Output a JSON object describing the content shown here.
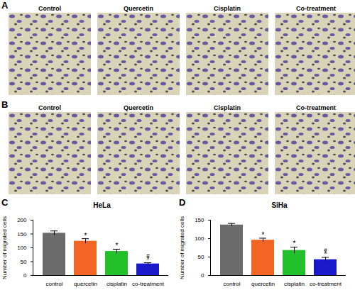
{
  "image_panels": [
    {
      "panel_label": "A",
      "labels": [
        "Control",
        "Quercetin",
        "Cisplatin",
        "Co-treatment"
      ]
    },
    {
      "panel_label": "B",
      "labels": [
        "Control",
        "Quercetin",
        "Cisplatin",
        "Co-treatment"
      ]
    }
  ],
  "chart_data": [
    {
      "type": "bar",
      "panel_label": "C",
      "title": "HeLa",
      "y_label": "Number of migrated cells",
      "categories": [
        "control",
        "quercetin",
        "cisplatin",
        "co-treatment"
      ],
      "values": [
        153,
        124,
        87,
        42
      ],
      "errors": [
        8,
        9,
        8,
        4
      ],
      "colors": [
        "#6b6b6b",
        "#f26522",
        "#22c02a",
        "#1a1acc"
      ],
      "ylim": [
        0,
        200
      ],
      "yticks": [
        0,
        50,
        100,
        150,
        200
      ],
      "annotations": [
        {
          "category": "quercetin",
          "text": "*"
        },
        {
          "category": "cisplatin",
          "text": "*"
        },
        {
          "category": "co-treatment",
          "text": "*"
        },
        {
          "category": "co-treatment",
          "text": "#"
        }
      ]
    },
    {
      "type": "bar",
      "panel_label": "D",
      "title": "SiHa",
      "y_label": "Number of migrated cells",
      "categories": [
        "control",
        "quercetin",
        "cisplatin",
        "co-treatment"
      ],
      "values": [
        137,
        96,
        68,
        43
      ],
      "errors": [
        4,
        5,
        9,
        6
      ],
      "colors": [
        "#6b6b6b",
        "#f26522",
        "#22c02a",
        "#1a1acc"
      ],
      "ylim": [
        0,
        150
      ],
      "yticks": [
        0,
        50,
        100,
        150
      ],
      "annotations": [
        {
          "category": "quercetin",
          "text": "*"
        },
        {
          "category": "cisplatin",
          "text": "*"
        },
        {
          "category": "co-treatment",
          "text": "*"
        },
        {
          "category": "co-treatment",
          "text": "#"
        }
      ]
    }
  ]
}
